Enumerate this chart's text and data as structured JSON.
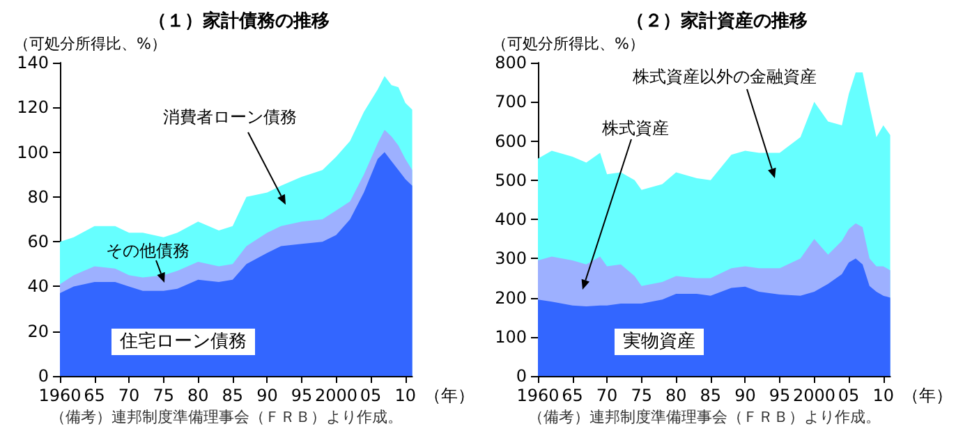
{
  "chart_data": [
    {
      "type": "area",
      "stacked": true,
      "title": "（１）家計債務の推移",
      "ylabel": "（可処分所得比、%）",
      "xlabel": "（年）",
      "annotations": [
        "（備考）連邦制度準備理事会（ＦＲＢ）より作成。"
      ],
      "legend": false,
      "grid": false,
      "x": [
        1960,
        1962,
        1965,
        1968,
        1970,
        1972,
        1975,
        1977,
        1980,
        1983,
        1985,
        1987,
        1990,
        1992,
        1995,
        1998,
        2000,
        2002,
        2004,
        2006,
        2007,
        2008,
        2009,
        2010,
        2011
      ],
      "xlim": [
        1960,
        2011
      ],
      "xticks": [
        {
          "value": 1960,
          "label": "1960"
        },
        {
          "value": 1965,
          "label": "65"
        },
        {
          "value": 1970,
          "label": "70"
        },
        {
          "value": 1975,
          "label": "75"
        },
        {
          "value": 1980,
          "label": "80"
        },
        {
          "value": 1985,
          "label": "85"
        },
        {
          "value": 1990,
          "label": "90"
        },
        {
          "value": 1995,
          "label": "95"
        },
        {
          "value": 2000,
          "label": "2000"
        },
        {
          "value": 2005,
          "label": "05"
        },
        {
          "value": 2010,
          "label": "10"
        }
      ],
      "ylim": [
        0,
        140
      ],
      "yticks": [
        0,
        20,
        40,
        60,
        80,
        100,
        120,
        140
      ],
      "series": [
        {
          "name": "住宅ローン債務",
          "color": "#3366ff",
          "values": [
            37,
            40,
            42,
            42,
            40,
            38,
            38,
            39,
            43,
            42,
            43,
            50,
            55,
            58,
            59,
            60,
            63,
            70,
            82,
            97,
            100,
            96,
            92,
            88,
            85
          ]
        },
        {
          "name": "その他債務",
          "color": "#9db0ff",
          "values": [
            4,
            5,
            7,
            6,
            5,
            6,
            7,
            8,
            8,
            7,
            7,
            8,
            9,
            9,
            10,
            10,
            11,
            8,
            8,
            7,
            10,
            11,
            11,
            9,
            7
          ]
        },
        {
          "name": "消費者ローン債務",
          "color": "#66ffff",
          "values": [
            19,
            17,
            18,
            19,
            19,
            20,
            17,
            17,
            18,
            16,
            17,
            22,
            18,
            18,
            20,
            22,
            24,
            27,
            28,
            24,
            24,
            23,
            26,
            25,
            27
          ]
        }
      ]
    },
    {
      "type": "area",
      "stacked": true,
      "title": "（２）家計資産の推移",
      "ylabel": "（可処分所得比、%）",
      "xlabel": "（年）",
      "annotations": [
        "（備考）連邦制度準備理事会（ＦＲＢ）より作成。"
      ],
      "legend": false,
      "grid": false,
      "x": [
        1960,
        1962,
        1965,
        1967,
        1969,
        1970,
        1972,
        1974,
        1975,
        1978,
        1980,
        1983,
        1985,
        1988,
        1990,
        1992,
        1995,
        1998,
        2000,
        2002,
        2004,
        2005,
        2006,
        2007,
        2008,
        2009,
        2010,
        2011
      ],
      "xlim": [
        1960,
        2011
      ],
      "xticks": [
        {
          "value": 1960,
          "label": "1960"
        },
        {
          "value": 1965,
          "label": "65"
        },
        {
          "value": 1970,
          "label": "70"
        },
        {
          "value": 1975,
          "label": "75"
        },
        {
          "value": 1980,
          "label": "80"
        },
        {
          "value": 1985,
          "label": "85"
        },
        {
          "value": 1990,
          "label": "90"
        },
        {
          "value": 1995,
          "label": "95"
        },
        {
          "value": 2000,
          "label": "2000"
        },
        {
          "value": 2005,
          "label": "05"
        },
        {
          "value": 2010,
          "label": "10"
        }
      ],
      "ylim": [
        0,
        800
      ],
      "yticks": [
        0,
        100,
        200,
        300,
        400,
        500,
        600,
        700,
        800
      ],
      "series": [
        {
          "name": "実物資産",
          "color": "#3366ff",
          "values": [
            195,
            190,
            180,
            178,
            180,
            180,
            185,
            185,
            185,
            195,
            210,
            210,
            205,
            225,
            228,
            215,
            208,
            205,
            215,
            235,
            260,
            290,
            300,
            285,
            230,
            215,
            205,
            200
          ]
        },
        {
          "name": "株式資産",
          "color": "#9db0ff",
          "values": [
            100,
            115,
            115,
            107,
            125,
            100,
            100,
            70,
            45,
            45,
            45,
            40,
            45,
            50,
            52,
            60,
            67,
            95,
            135,
            75,
            85,
            85,
            90,
            95,
            70,
            65,
            75,
            70
          ]
        },
        {
          "name": "株式資産以外の金融資産",
          "color": "#66ffff",
          "values": [
            260,
            270,
            265,
            260,
            265,
            235,
            235,
            245,
            245,
            250,
            265,
            255,
            250,
            290,
            295,
            295,
            295,
            310,
            350,
            340,
            295,
            345,
            385,
            395,
            390,
            330,
            360,
            345
          ]
        }
      ]
    }
  ]
}
